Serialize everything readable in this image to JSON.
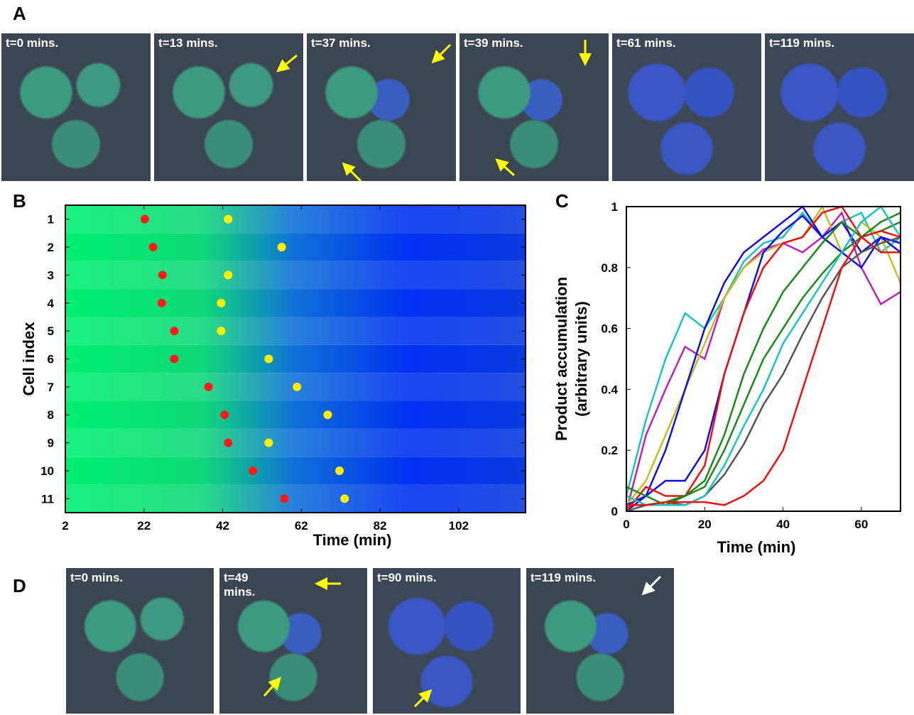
{
  "panels": {
    "A": {
      "label": "A",
      "images": [
        "t=0 mins.",
        "t=13 mins.",
        "t=37 mins.",
        "t=39 mins.",
        "t=61 mins.",
        "t=119 mins."
      ]
    },
    "B": {
      "label": "B"
    },
    "C": {
      "label": "C"
    },
    "D": {
      "label": "D",
      "images": [
        "t=0 mins.",
        "t=49 mins.",
        "t=90 mins.",
        "t=119 mins."
      ]
    }
  },
  "chart_data": [
    {
      "type": "heatmap",
      "xlabel": "Time (min)",
      "ylabel": "Cell index",
      "categories": [
        1,
        2,
        3,
        4,
        5,
        6,
        7,
        8,
        9,
        10,
        11
      ],
      "series": [
        {
          "color": "#ff1a1a",
          "values": [
            22.2,
            24.3,
            26.7,
            26.5,
            29.7,
            29.7,
            38.4,
            42.5,
            43.4,
            49.7,
            57.7
          ]
        },
        {
          "color": "#ffee00",
          "values": [
            43.4,
            57,
            43.4,
            41.6,
            41.6,
            53.7,
            60.9,
            68.7,
            53.7,
            71.7,
            73
          ]
        }
      ],
      "xlim": [
        2,
        119
      ],
      "xticks": [
        2,
        22,
        42,
        62,
        82,
        102
      ]
    },
    {
      "type": "line",
      "xlabel": "Time (min)",
      "ylabel": [
        "Product accumulation",
        "(arbitrary units)"
      ],
      "x": [
        0,
        5,
        10,
        15,
        20,
        25,
        30,
        35,
        40,
        45,
        50,
        55,
        60,
        65,
        70
      ],
      "series": [
        {
          "color": "#19c4c4",
          "values": [
            0.05,
            0.3,
            0.5,
            0.65,
            0.6,
            0.7,
            0.82,
            0.88,
            0.9,
            0.98,
            0.9,
            0.95,
            0.98,
            0.85,
            0.9
          ]
        },
        {
          "color": "#c020c0",
          "values": [
            0,
            0.25,
            0.4,
            0.54,
            0.5,
            0.7,
            0.8,
            0.86,
            0.88,
            0.85,
            0.9,
            0.98,
            0.8,
            0.68,
            0.72
          ]
        },
        {
          "color": "#c8bc20",
          "values": [
            0.02,
            0.1,
            0.25,
            0.4,
            0.55,
            0.7,
            0.8,
            0.85,
            0.88,
            0.9,
            1,
            0.85,
            0.95,
            0.9,
            0.75
          ]
        },
        {
          "color": "#1010e0",
          "values": [
            0,
            0.05,
            0.2,
            0.4,
            0.6,
            0.75,
            0.85,
            0.9,
            0.95,
            1,
            0.9,
            0.85,
            0.8,
            0.9,
            0.85
          ]
        },
        {
          "color": "#1010e0",
          "values": [
            0.02,
            0.05,
            0.1,
            0.1,
            0.2,
            0.45,
            0.65,
            0.85,
            0.92,
            0.97,
            0.9,
            0.95,
            0.85,
            0.9,
            0.88
          ]
        },
        {
          "color": "#ee1111",
          "values": [
            0,
            0.08,
            0.05,
            0.05,
            0.15,
            0.45,
            0.65,
            0.8,
            0.88,
            0.9,
            0.98,
            1,
            0.9,
            0.85,
            0.85
          ]
        },
        {
          "color": "#1a8a1a",
          "values": [
            0.08,
            0.05,
            0.02,
            0.05,
            0.1,
            0.25,
            0.45,
            0.6,
            0.72,
            0.8,
            0.88,
            0.95,
            0.9,
            0.95,
            0.98
          ]
        },
        {
          "color": "#1a8a1a",
          "values": [
            0.05,
            0.02,
            0.03,
            0.05,
            0.08,
            0.2,
            0.35,
            0.5,
            0.6,
            0.7,
            0.78,
            0.85,
            0.9,
            0.92,
            0.95
          ]
        },
        {
          "color": "#555555",
          "values": [
            0,
            0.02,
            0.03,
            0.02,
            0.05,
            0.12,
            0.22,
            0.35,
            0.45,
            0.58,
            0.7,
            0.8,
            0.85,
            0.88,
            0.9
          ]
        },
        {
          "color": "#19c4c4",
          "values": [
            0.05,
            0.02,
            0.02,
            0.02,
            0.05,
            0.15,
            0.28,
            0.4,
            0.55,
            0.65,
            0.75,
            0.85,
            0.95,
            1,
            0.9
          ]
        },
        {
          "color": "#ee1111",
          "values": [
            0.02,
            0.02,
            0.03,
            0.03,
            0.03,
            0.02,
            0.05,
            0.1,
            0.2,
            0.4,
            0.6,
            0.8,
            0.9,
            0.92,
            0.9
          ]
        }
      ],
      "xlim": [
        0,
        70
      ],
      "ylim": [
        0,
        1
      ],
      "xticks": [
        0,
        20,
        40,
        60
      ],
      "yticks": [
        0,
        0.2,
        0.4,
        0.6,
        0.8,
        1
      ]
    }
  ]
}
